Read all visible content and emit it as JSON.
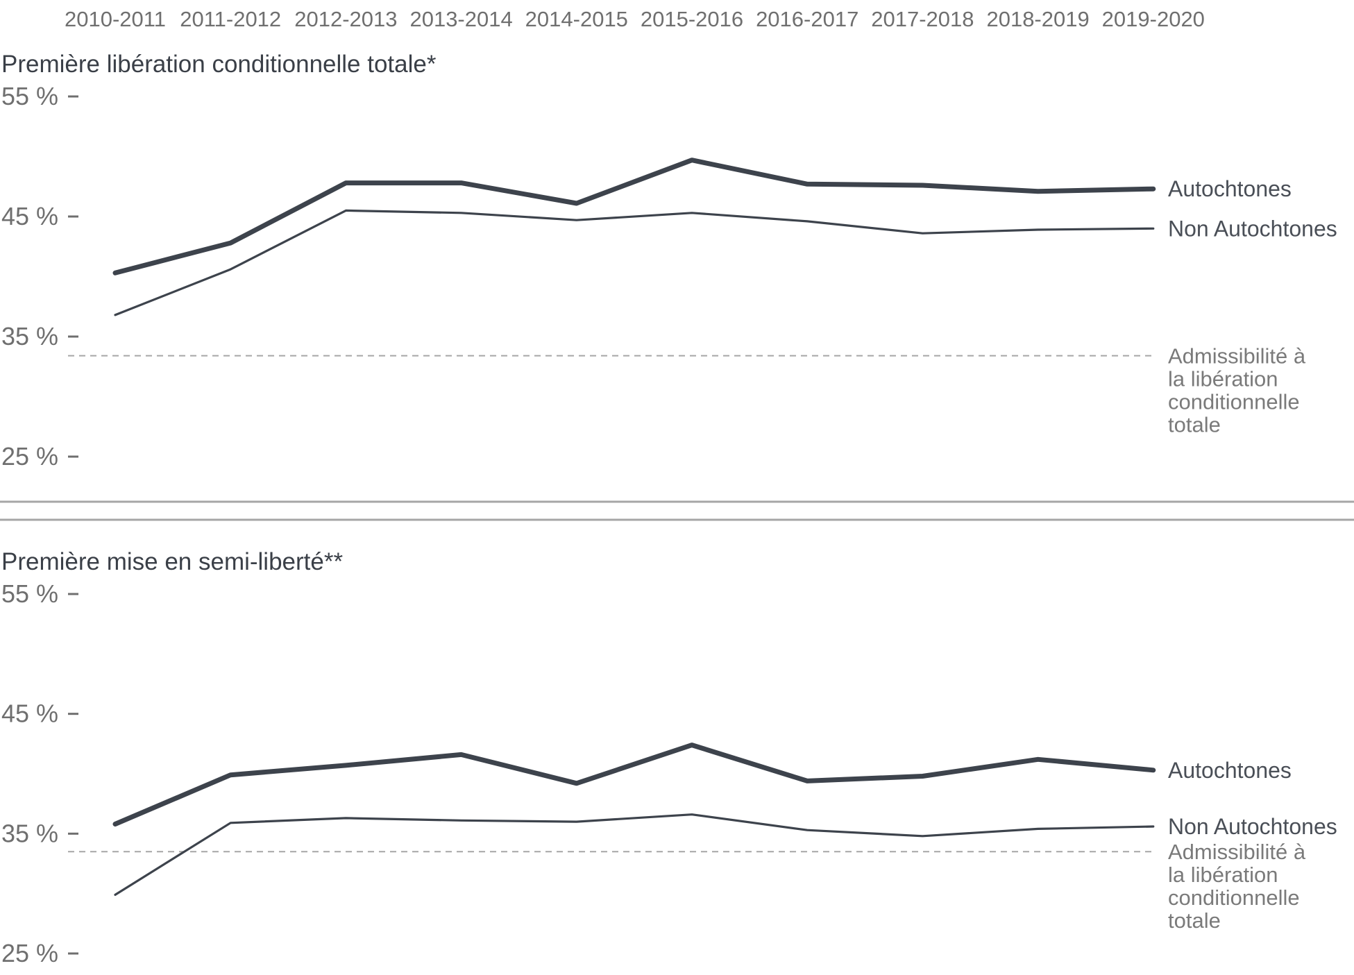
{
  "chart_data": {
    "type": "line",
    "x": [
      "2010-2011",
      "2011-2012",
      "2012-2013",
      "2013-2014",
      "2014-2015",
      "2015-2016",
      "2016-2017",
      "2017-2018",
      "2018-2019",
      "2019-2020"
    ],
    "panels": [
      {
        "title": "Première libération conditionnelle totale*",
        "yticks": [
          "55 %",
          "45 %",
          "35 %",
          "25 %"
        ],
        "ytick_values": [
          55,
          45,
          35,
          25
        ],
        "ylim": [
          25,
          55
        ],
        "series": [
          {
            "name": "Autochtones",
            "values": [
              40.3,
              42.8,
              47.8,
              47.8,
              46.1,
              49.7,
              47.7,
              47.6,
              47.1,
              47.3
            ],
            "emphasis": "thick"
          },
          {
            "name": "Non Autochtones",
            "values": [
              36.8,
              40.6,
              45.5,
              45.3,
              44.7,
              45.3,
              44.6,
              43.6,
              43.9,
              44.0
            ],
            "emphasis": "thin"
          }
        ],
        "reference": {
          "label_lines": [
            "Admissibilité à",
            "la libération",
            "conditionnelle",
            "totale"
          ],
          "value": 33.4
        }
      },
      {
        "title": "Première mise en semi-liberté**",
        "yticks": [
          "55 %",
          "45 %",
          "35 %",
          "25 %"
        ],
        "ytick_values": [
          55,
          45,
          35,
          25
        ],
        "ylim": [
          25,
          55
        ],
        "series": [
          {
            "name": "Autochtones",
            "values": [
              35.8,
              39.9,
              40.7,
              41.6,
              39.2,
              42.4,
              39.4,
              39.8,
              41.2,
              40.3
            ],
            "emphasis": "thick"
          },
          {
            "name": "Non Autochtones",
            "values": [
              29.9,
              35.9,
              36.3,
              36.1,
              36.0,
              36.6,
              35.3,
              34.8,
              35.4,
              35.6
            ],
            "emphasis": "thin"
          }
        ],
        "reference": {
          "label_lines": [
            "Admissibilité à",
            "la libération",
            "conditionnelle",
            "totale"
          ],
          "value": 33.5
        }
      }
    ]
  }
}
